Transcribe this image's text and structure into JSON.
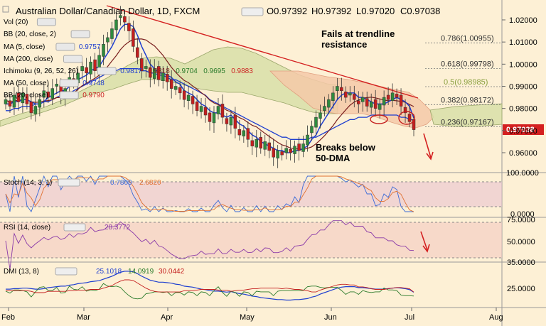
{
  "header": {
    "title": "Australian Dollar/Canadian Dollar, 1D, FXCM",
    "ohlc": [
      "O0.97392",
      "H0.97392",
      "L0.97020",
      "C0.97038"
    ]
  },
  "legend": [
    {
      "label": "Vol (20)",
      "color": "#cccccc"
    },
    {
      "label": "BB (20, close, 2)",
      "color": "#999999"
    },
    {
      "label": "MA (5, close)",
      "value": "0.9757",
      "color": "#1f3fd0"
    },
    {
      "label": "MA (200, close)",
      "color": "#2a7a2a"
    },
    {
      "label": "Ichimoku (9, 26, 52, 26)",
      "values": [
        "0.9817",
        "0.9818",
        "0.9704",
        "0.9695",
        "0.9883"
      ],
      "colors": [
        "#1f3fd0",
        "#7a1f1f",
        "#2a7a2a",
        "#2a7a2a",
        "#cc2222"
      ]
    },
    {
      "label": "MA (50, close)",
      "value": "0.9748",
      "color": "#1f3fd0"
    },
    {
      "label": "BB (20, close)",
      "value": "0.9790",
      "color": "#cc2222"
    }
  ],
  "annotations": {
    "trendline": "Fails at trendline resistance",
    "breaks": "Breaks below 50-DMA"
  },
  "price_label": "0.97038",
  "fib_levels": [
    {
      "label": "0.786(1.00955)",
      "value": 1.00955
    },
    {
      "label": "0.618(0.99798)",
      "value": 0.99798
    },
    {
      "label": "0.5(0.98985)",
      "value": 0.98985
    },
    {
      "label": "0.382(0.98172)",
      "value": 0.98172
    },
    {
      "label": "0.236(0.97167)",
      "value": 0.97167
    }
  ],
  "stoch": {
    "label": "Stoch (14, 3, 1)",
    "k": "0.7809",
    "d": "2.6820"
  },
  "rsi": {
    "label": "RSI (14, close)",
    "value": "28.3772"
  },
  "dmi": {
    "label": "DMI (13, 8)",
    "plus": "25.1018",
    "minus": "14.0919",
    "adx": "30.0442"
  },
  "colors": {
    "bull": "#2e8b3e",
    "bear": "#c41e1e",
    "ma5": "#1f3fd0",
    "ma50": "#1f3fd0",
    "ma20": "#7a1f1f",
    "trend": "#d42020",
    "cloud_bull": "#d8dfa8",
    "cloud_bear": "#f5c9a8"
  },
  "chart_data": [
    {
      "type": "candlestick",
      "title": "Australian Dollar/Canadian Dollar, 1D, FXCM",
      "x_ticks": [
        "Feb",
        "Mar",
        "Apr",
        "May",
        "Jun",
        "Jul",
        "Aug"
      ],
      "y_ticks": [
        1.02,
        1.01,
        1.0,
        0.99,
        0.98,
        0.97,
        0.96
      ],
      "ylim": [
        0.95,
        1.03
      ],
      "close": [
        0.984,
        0.981,
        0.986,
        0.983,
        0.987,
        0.982,
        0.978,
        0.981,
        0.984,
        0.988,
        0.985,
        0.989,
        0.991,
        0.986,
        0.989,
        0.994,
        0.992,
        0.996,
        0.999,
        0.996,
        1.001,
        0.997,
        1.004,
        1.009,
        1.012,
        1.016,
        1.02,
        1.022,
        1.019,
        1.015,
        1.008,
        1.003,
        0.997,
        0.999,
        0.994,
        0.998,
        0.993,
        0.996,
        0.992,
        0.989,
        0.99,
        0.987,
        0.984,
        0.986,
        0.982,
        0.979,
        0.981,
        0.977,
        0.974,
        0.978,
        0.981,
        0.976,
        0.973,
        0.976,
        0.971,
        0.968,
        0.97,
        0.966,
        0.963,
        0.966,
        0.962,
        0.965,
        0.961,
        0.958,
        0.961,
        0.959,
        0.962,
        0.96,
        0.963,
        0.961,
        0.964,
        0.968,
        0.972,
        0.976,
        0.978,
        0.981,
        0.984,
        0.987,
        0.99,
        0.988,
        0.985,
        0.987,
        0.984,
        0.982,
        0.985,
        0.981,
        0.983,
        0.98,
        0.982,
        0.985,
        0.984,
        0.987,
        0.985,
        0.981,
        0.978,
        0.974,
        0.9704
      ],
      "series": [
        {
          "name": "MA (5, close)",
          "values": [
            0.982,
            0.982,
            0.983,
            0.983,
            0.984,
            0.984,
            0.983,
            0.982,
            0.982,
            0.983,
            0.985,
            0.986,
            0.987,
            0.988,
            0.988,
            0.99,
            0.991,
            0.993,
            0.994,
            0.995,
            0.997,
            0.998,
            0.999,
            1.002,
            1.005,
            1.008,
            1.012,
            1.016,
            1.018,
            1.018,
            1.017,
            1.013,
            1.008,
            1.004,
            1.0,
            0.998,
            0.996,
            0.996,
            0.995,
            0.994,
            0.992,
            0.991,
            0.988,
            0.987,
            0.986,
            0.984,
            0.982,
            0.981,
            0.979,
            0.978,
            0.978,
            0.977,
            0.976,
            0.977,
            0.975,
            0.973,
            0.972,
            0.97,
            0.968,
            0.967,
            0.965,
            0.964,
            0.963,
            0.962,
            0.961,
            0.961,
            0.96,
            0.96,
            0.961,
            0.961,
            0.962,
            0.963,
            0.966,
            0.968,
            0.972,
            0.975,
            0.978,
            0.981,
            0.984,
            0.986,
            0.987,
            0.987,
            0.987,
            0.985,
            0.985,
            0.984,
            0.983,
            0.982,
            0.982,
            0.982,
            0.983,
            0.984,
            0.985,
            0.984,
            0.983,
            0.981,
            0.9757
          ]
        },
        {
          "name": "MA (50, close)",
          "values": [
            0.979,
            0.979,
            0.98,
            0.98,
            0.981,
            0.981,
            0.981,
            0.982,
            0.982,
            0.983,
            0.983,
            0.984,
            0.985,
            0.986,
            0.986,
            0.987,
            0.988,
            0.989,
            0.99,
            0.991,
            0.992,
            0.993,
            0.994,
            0.995,
            0.996,
            0.997,
            0.997,
            0.998,
            0.998,
            0.998,
            0.998,
            0.998,
            0.997,
            0.997,
            0.996,
            0.996,
            0.995,
            0.995,
            0.994,
            0.993,
            0.993,
            0.992,
            0.991,
            0.99,
            0.989,
            0.988,
            0.987,
            0.986,
            0.984,
            0.983,
            0.982,
            0.981,
            0.98,
            0.979,
            0.978,
            0.977,
            0.976,
            0.975,
            0.974,
            0.973,
            0.972,
            0.971,
            0.97,
            0.969,
            0.968,
            0.967,
            0.967,
            0.966,
            0.966,
            0.966,
            0.966,
            0.966,
            0.967,
            0.967,
            0.968,
            0.969,
            0.97,
            0.971,
            0.972,
            0.973,
            0.974,
            0.975,
            0.975,
            0.976,
            0.976,
            0.976,
            0.977,
            0.977,
            0.977,
            0.977,
            0.977,
            0.977,
            0.977,
            0.976,
            0.976,
            0.975,
            0.9748
          ]
        }
      ]
    }
  ]
}
